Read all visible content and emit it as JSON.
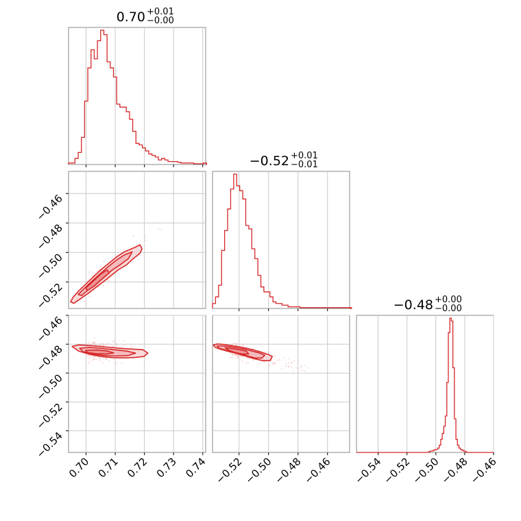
{
  "chart_data": {
    "type": "corner",
    "color": "#d62728",
    "params": [
      {
        "title": "0.70",
        "plus": "+0.01",
        "minus": "−0.00",
        "range": [
          0.694,
          0.741
        ]
      },
      {
        "title": "−0.52",
        "plus": "+0.01",
        "minus": "−0.01",
        "range": [
          -0.538,
          -0.445
        ]
      },
      {
        "title": "−0.48",
        "plus": "+0.00",
        "minus": "−0.00",
        "range": [
          -0.555,
          -0.46
        ]
      }
    ],
    "ticks": [
      {
        "values": [
          0.7,
          0.71,
          0.72,
          0.73,
          0.74
        ],
        "labels": [
          "0.70",
          "0.71",
          "0.72",
          "0.73",
          "0.74"
        ]
      },
      {
        "values": [
          -0.52,
          -0.5,
          -0.48,
          -0.46
        ],
        "labels": [
          "−0.52",
          "−0.50",
          "−0.48",
          "−0.46"
        ]
      },
      {
        "values": [
          -0.54,
          -0.52,
          -0.5,
          -0.48,
          -0.46
        ],
        "labels": [
          "−0.54",
          "−0.52",
          "−0.50",
          "−0.48",
          "−0.46"
        ]
      }
    ],
    "histograms": [
      {
        "param": 0,
        "start": 0.694,
        "width": 0.0011,
        "counts": [
          0.01,
          0.01,
          0.04,
          0.08,
          0.18,
          0.42,
          0.64,
          0.76,
          0.7,
          0.82,
          0.89,
          0.86,
          0.68,
          0.64,
          0.58,
          0.4,
          0.38,
          0.38,
          0.35,
          0.3,
          0.22,
          0.14,
          0.13,
          0.11,
          0.09,
          0.07,
          0.06,
          0.05,
          0.03,
          0.04,
          0.03,
          0.02,
          0.02,
          0.02,
          0.015,
          0.01,
          0.01,
          0.01,
          0.01,
          0.005,
          0.005,
          0.005,
          0.01
        ]
      },
      {
        "param": 1,
        "start": -0.538,
        "width": 0.00205,
        "counts": [
          0.03,
          0.07,
          0.14,
          0.35,
          0.47,
          0.6,
          0.72,
          0.81,
          0.74,
          0.71,
          0.66,
          0.5,
          0.48,
          0.36,
          0.3,
          0.2,
          0.13,
          0.1,
          0.1,
          0.07,
          0.04,
          0.03,
          0.03,
          0.02,
          0.02,
          0.01,
          0.01,
          0.01,
          0.01,
          0.005,
          0.005,
          0.005,
          0.005,
          0.005,
          0.005,
          0.005,
          0.005,
          0.005,
          0.005,
          0.005,
          0.005,
          0.005,
          0.005,
          0.005,
          0.005,
          0.005
        ]
      },
      {
        "param": 2,
        "start": -0.505,
        "width": 0.00105,
        "counts": [
          0.005,
          0.01,
          0.01,
          0.015,
          0.02,
          0.02,
          0.03,
          0.05,
          0.09,
          0.13,
          0.18,
          0.25,
          0.48,
          0.82,
          0.92,
          0.9,
          0.58,
          0.23,
          0.09,
          0.05,
          0.03,
          0.02,
          0.015,
          0.01,
          0.005
        ]
      }
    ],
    "contours": [
      {
        "row": 1,
        "col": 0,
        "levels": [
          {
            "x": [
              0.6947,
              0.6955,
              0.6975,
              0.7,
              0.7025,
              0.7052,
              0.708,
              0.7105,
              0.7132,
              0.7168,
              0.7185,
              0.7192,
              0.7185,
              0.716,
              0.7138,
              0.7112,
              0.709,
              0.7065,
              0.7035,
              0.7005,
              0.6978,
              0.6958,
              0.6947
            ],
            "y": [
              -0.5335,
              -0.5305,
              -0.526,
              -0.5213,
              -0.5165,
              -0.5115,
              -0.507,
              -0.503,
              -0.4995,
              -0.4965,
              -0.4948,
              -0.4975,
              -0.5005,
              -0.5045,
              -0.5085,
              -0.5115,
              -0.515,
              -0.519,
              -0.5235,
              -0.528,
              -0.5318,
              -0.5345,
              -0.5335
            ]
          },
          {
            "x": [
              0.6973,
              0.6996,
              0.702,
              0.7048,
              0.7075,
              0.71,
              0.713,
              0.7158,
              0.7145,
              0.7118,
              0.7092,
              0.7066,
              0.704,
              0.7012,
              0.6985,
              0.6973
            ],
            "y": [
              -0.5285,
              -0.524,
              -0.5195,
              -0.5145,
              -0.5098,
              -0.5058,
              -0.5018,
              -0.4995,
              -0.5042,
              -0.5082,
              -0.5116,
              -0.5156,
              -0.52,
              -0.5246,
              -0.5292,
              -0.5285
            ]
          },
          {
            "x": [
              0.7,
              0.7025,
              0.705,
              0.7072,
              0.708,
              0.7055,
              0.703,
              0.7006,
              0.7,
              0.7
            ],
            "y": [
              -0.524,
              -0.5195,
              -0.5148,
              -0.5118,
              -0.5138,
              -0.518,
              -0.5225,
              -0.5256,
              -0.5248,
              -0.524
            ]
          }
        ]
      },
      {
        "row": 2,
        "col": 0,
        "levels": [
          {
            "x": [
              0.6952,
              0.6975,
              0.7005,
              0.7045,
              0.7085,
              0.7125,
              0.7165,
              0.7195,
              0.7212,
              0.7198,
              0.717,
              0.713,
              0.709,
              0.705,
              0.701,
              0.6975,
              0.6952
            ],
            "y": [
              -0.4815,
              -0.4805,
              -0.4808,
              -0.4815,
              -0.4822,
              -0.483,
              -0.4835,
              -0.4838,
              -0.4862,
              -0.4885,
              -0.4892,
              -0.4895,
              -0.4893,
              -0.4885,
              -0.4868,
              -0.4848,
              -0.4815
            ]
          },
          {
            "x": [
              0.6978,
              0.701,
              0.705,
              0.7095,
              0.714,
              0.717,
              0.7145,
              0.71,
              0.706,
              0.7022,
              0.699,
              0.6978
            ],
            "y": [
              -0.4828,
              -0.4823,
              -0.4828,
              -0.4838,
              -0.4848,
              -0.4862,
              -0.4878,
              -0.4882,
              -0.4878,
              -0.4868,
              -0.4852,
              -0.4828
            ]
          },
          {
            "x": [
              0.6998,
              0.7035,
              0.707,
              0.7095,
              0.707,
              0.7035,
              0.7005,
              0.6998
            ],
            "y": [
              -0.4843,
              -0.484,
              -0.4846,
              -0.486,
              -0.4868,
              -0.4866,
              -0.4858,
              -0.4843
            ]
          }
        ]
      },
      {
        "row": 2,
        "col": 1,
        "levels": [
          {
            "x": [
              -0.5375,
              -0.5345,
              -0.53,
              -0.525,
              -0.52,
              -0.515,
              -0.51,
              -0.505,
              -0.5005,
              -0.4975,
              -0.4988,
              -0.503,
              -0.508,
              -0.513,
              -0.518,
              -0.523,
              -0.528,
              -0.5325,
              -0.5362,
              -0.5375
            ],
            "y": [
              -0.4805,
              -0.4798,
              -0.4802,
              -0.481,
              -0.4818,
              -0.4828,
              -0.484,
              -0.4855,
              -0.487,
              -0.4885,
              -0.4912,
              -0.4915,
              -0.4905,
              -0.489,
              -0.4875,
              -0.486,
              -0.4848,
              -0.4835,
              -0.4822,
              -0.4805
            ]
          },
          {
            "x": [
              -0.535,
              -0.531,
              -0.526,
              -0.521,
              -0.516,
              -0.511,
              -0.5065,
              -0.5025,
              -0.5045,
              -0.509,
              -0.514,
              -0.519,
              -0.524,
              -0.529,
              -0.5335,
              -0.535
            ],
            "y": [
              -0.4812,
              -0.4812,
              -0.4818,
              -0.4826,
              -0.4835,
              -0.4848,
              -0.486,
              -0.4876,
              -0.4896,
              -0.4896,
              -0.4882,
              -0.4868,
              -0.4855,
              -0.4842,
              -0.4828,
              -0.4812
            ]
          },
          {
            "x": [
              -0.5295,
              -0.525,
              -0.52,
              -0.515,
              -0.5135,
              -0.518,
              -0.5225,
              -0.527,
              -0.5295
            ],
            "y": [
              -0.4825,
              -0.483,
              -0.4838,
              -0.4848,
              -0.4868,
              -0.4868,
              -0.4858,
              -0.4843,
              -0.4825
            ]
          }
        ]
      }
    ]
  }
}
